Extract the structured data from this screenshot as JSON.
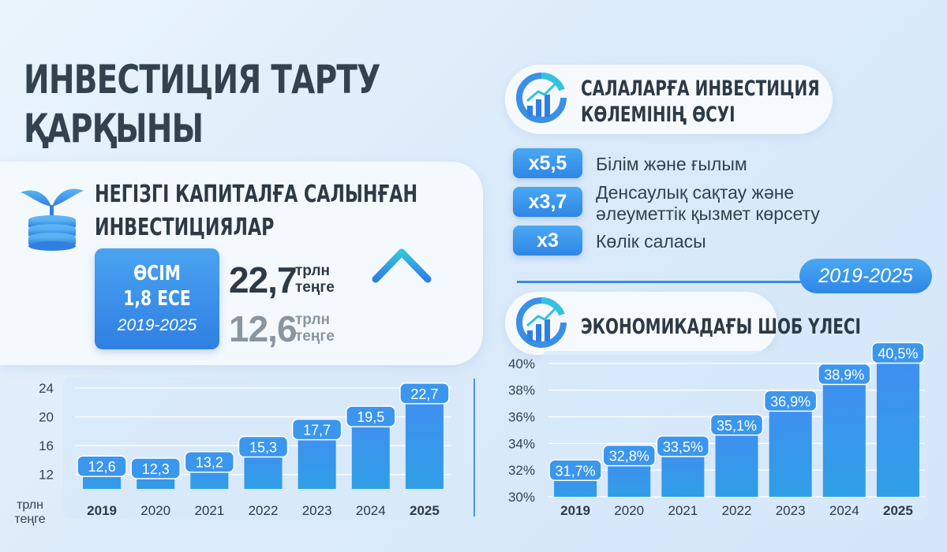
{
  "title": {
    "line1": "ИНВЕСТИЦИЯ ТАРТУ",
    "line2": "ҚАРҚЫНЫ"
  },
  "left_section": {
    "title_line1": "НЕГІЗГІ КАПИТАЛҒА САЛЫНҒАН",
    "title_line2": "ИНВЕСТИЦИЯЛАР",
    "icon": "plant-coins-icon",
    "growth": {
      "line1": "ӨСІМ",
      "line2": "1,8 ЕСЕ",
      "period": "2019-2025"
    },
    "value_2025": "22,7",
    "value_2019": "12,6",
    "unit_line1": "трлн",
    "unit_line2": "теңге",
    "arrow_icon": "arrow-up-icon"
  },
  "right_section": {
    "title_line1": "САЛАЛАРҒА ИНВЕСТИЦИЯ",
    "title_line2": "КӨЛЕМІНІҢ ӨСУІ",
    "icon": "growth-chart-icon",
    "sectors": [
      {
        "multiplier": "x5,5",
        "label": "Білім және ғылым"
      },
      {
        "multiplier": "x3,7",
        "label_line1": "Денсаулық сақтау және",
        "label_line2": "әлеуметтік қызмет көрсету"
      },
      {
        "multiplier": "x3",
        "label": "Көлік саласы"
      }
    ],
    "period": "2019-2025",
    "chart_title": "ЭКОНОМИКАДАҒЫ ШОБ ҮЛЕСІ"
  },
  "colors": {
    "accent": "#2f86e6",
    "text": "#2d3a46",
    "muted": "#7d8b96",
    "light_accent": "#4aa8f2"
  },
  "chart_data": [
    {
      "type": "bar",
      "categories": [
        "2019",
        "2020",
        "2021",
        "2022",
        "2023",
        "2024",
        "2025"
      ],
      "values": [
        12.6,
        12.3,
        13.2,
        15.3,
        17.7,
        19.5,
        22.7
      ],
      "value_labels": [
        "12,6",
        "12,3",
        "13,2",
        "15,3",
        "17,7",
        "19,5",
        "22,7"
      ],
      "yticks": [
        "12",
        "16",
        "20",
        "24"
      ],
      "ylim": [
        10,
        24
      ],
      "ylabel_line1": "трлн",
      "ylabel_line2": "теңге",
      "bold_categories": [
        "2019",
        "2025"
      ],
      "grid": true
    },
    {
      "type": "bar",
      "categories": [
        "2019",
        "2020",
        "2021",
        "2022",
        "2023",
        "2024",
        "2025"
      ],
      "values": [
        31.7,
        32.8,
        33.5,
        35.1,
        36.9,
        38.9,
        40.5
      ],
      "value_labels": [
        "31,7%",
        "32,8%",
        "33,5%",
        "35,1%",
        "36,9%",
        "38,9%",
        "40,5%"
      ],
      "yticks": [
        "30%",
        "32%",
        "34%",
        "36%",
        "38%",
        "40%"
      ],
      "ylim": [
        30,
        41
      ],
      "bold_categories": [
        "2019",
        "2025"
      ],
      "grid": true
    }
  ]
}
